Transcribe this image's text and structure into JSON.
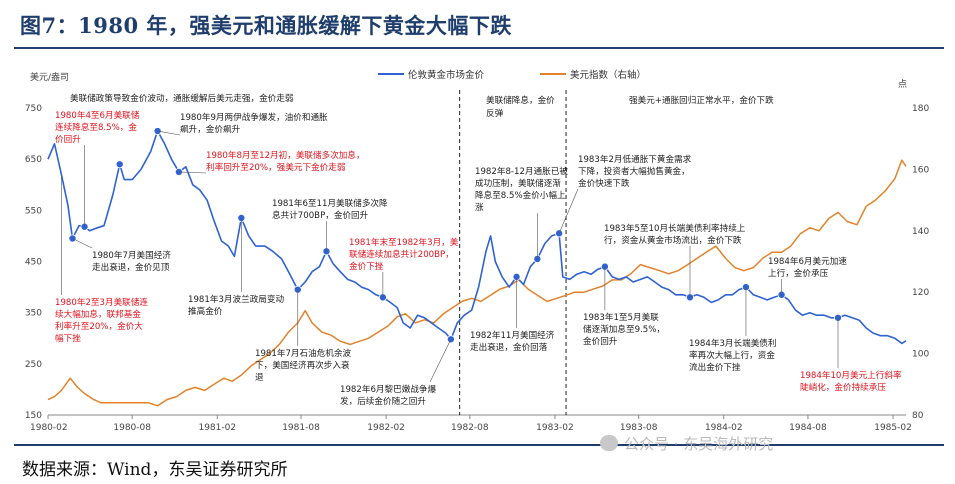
{
  "title": "图7：1980 年，强美元和通胀缓解下黄金大幅下跌",
  "source": "数据来源：Wind，东吴证券研究所",
  "watermark": "公众号 · 东吴海外研究",
  "colors": {
    "gold": "#2f62d4",
    "usd": "#e2832a",
    "title": "#1f3e6e",
    "red": "#e0141e"
  },
  "chart_data": {
    "type": "line",
    "left_unit": "美元/盎司",
    "right_unit": "点",
    "y_left_lim": [
      150,
      750
    ],
    "y_right_lim": [
      80,
      180
    ],
    "y_left_ticks": [
      150,
      250,
      350,
      450,
      550,
      650,
      750
    ],
    "y_right_ticks": [
      80,
      100,
      120,
      140,
      160,
      180
    ],
    "x_range": [
      "1980-02",
      "1985-03"
    ],
    "x_ticks": [
      "1980-02",
      "1980-08",
      "1981-02",
      "1981-08",
      "1982-02",
      "1982-08",
      "1983-02",
      "1983-08",
      "1984-02",
      "1984-08",
      "1985-02"
    ],
    "series": [
      {
        "name": "伦敦黄金市场金价",
        "axis": "left",
        "points": [
          [
            "1980-02",
            650
          ],
          [
            "1980-02-15",
            680
          ],
          [
            "1980-03-01",
            620
          ],
          [
            "1980-03-15",
            560
          ],
          [
            "1980-03-25",
            495
          ],
          [
            "1980-04-08",
            520
          ],
          [
            "1980-04-20",
            518
          ],
          [
            "1980-05-01",
            510
          ],
          [
            "1980-05-15",
            515
          ],
          [
            "1980-06-01",
            520
          ],
          [
            "1980-06-20",
            580
          ],
          [
            "1980-07-05",
            640
          ],
          [
            "1980-07-15",
            610
          ],
          [
            "1980-08-01",
            610
          ],
          [
            "1980-08-20",
            630
          ],
          [
            "1980-09-10",
            665
          ],
          [
            "1980-09-25",
            705
          ],
          [
            "1980-10-10",
            680
          ],
          [
            "1980-10-25",
            650
          ],
          [
            "1980-11-10",
            625
          ],
          [
            "1980-11-25",
            635
          ],
          [
            "1980-12-10",
            600
          ],
          [
            "1980-12-25",
            590
          ],
          [
            "1981-01-10",
            570
          ],
          [
            "1981-01-25",
            530
          ],
          [
            "1981-02-10",
            490
          ],
          [
            "1981-02-25",
            480
          ],
          [
            "1981-03-10",
            460
          ],
          [
            "1981-03-25",
            535
          ],
          [
            "1981-04-10",
            500
          ],
          [
            "1981-04-25",
            480
          ],
          [
            "1981-05-15",
            480
          ],
          [
            "1981-06-01",
            470
          ],
          [
            "1981-06-20",
            455
          ],
          [
            "1981-07-05",
            430
          ],
          [
            "1981-07-25",
            395
          ],
          [
            "1981-08-10",
            410
          ],
          [
            "1981-08-25",
            430
          ],
          [
            "1981-09-10",
            440
          ],
          [
            "1981-09-25",
            470
          ],
          [
            "1981-10-10",
            445
          ],
          [
            "1981-10-25",
            430
          ],
          [
            "1981-11-10",
            415
          ],
          [
            "1981-11-25",
            410
          ],
          [
            "1981-12-10",
            400
          ],
          [
            "1981-12-25",
            395
          ],
          [
            "1982-01-10",
            385
          ],
          [
            "1982-01-25",
            380
          ],
          [
            "1982-02-10",
            370
          ],
          [
            "1982-02-25",
            360
          ],
          [
            "1982-03-10",
            330
          ],
          [
            "1982-03-25",
            320
          ],
          [
            "1982-04-10",
            345
          ],
          [
            "1982-04-25",
            340
          ],
          [
            "1982-05-10",
            330
          ],
          [
            "1982-05-25",
            320
          ],
          [
            "1982-06-10",
            310
          ],
          [
            "1982-06-21",
            298
          ],
          [
            "1982-07-05",
            330
          ],
          [
            "1982-07-20",
            345
          ],
          [
            "1982-08-05",
            355
          ],
          [
            "1982-08-20",
            400
          ],
          [
            "1982-09-05",
            470
          ],
          [
            "1982-09-15",
            500
          ],
          [
            "1982-09-25",
            450
          ],
          [
            "1982-10-10",
            420
          ],
          [
            "1982-10-25",
            400
          ],
          [
            "1982-11-10",
            420
          ],
          [
            "1982-11-25",
            405
          ],
          [
            "1982-12-10",
            440
          ],
          [
            "1982-12-25",
            455
          ],
          [
            "1983-01-10",
            485
          ],
          [
            "1983-01-25",
            500
          ],
          [
            "1983-02-10",
            505
          ],
          [
            "1983-02-18",
            420
          ],
          [
            "1983-03-05",
            415
          ],
          [
            "1983-03-20",
            425
          ],
          [
            "1983-04-05",
            430
          ],
          [
            "1983-04-20",
            425
          ],
          [
            "1983-05-05",
            435
          ],
          [
            "1983-05-20",
            440
          ],
          [
            "1983-06-05",
            420
          ],
          [
            "1983-06-20",
            415
          ],
          [
            "1983-07-05",
            420
          ],
          [
            "1983-07-20",
            410
          ],
          [
            "1983-08-05",
            415
          ],
          [
            "1983-08-20",
            420
          ],
          [
            "1983-09-05",
            410
          ],
          [
            "1983-09-20",
            400
          ],
          [
            "1983-10-05",
            395
          ],
          [
            "1983-10-20",
            385
          ],
          [
            "1983-11-05",
            385
          ],
          [
            "1983-11-20",
            380
          ],
          [
            "1983-12-05",
            385
          ],
          [
            "1983-12-20",
            380
          ],
          [
            "1984-01-05",
            370
          ],
          [
            "1984-01-20",
            375
          ],
          [
            "1984-02-05",
            385
          ],
          [
            "1984-02-20",
            385
          ],
          [
            "1984-03-05",
            395
          ],
          [
            "1984-03-20",
            400
          ],
          [
            "1984-04-05",
            385
          ],
          [
            "1984-04-20",
            380
          ],
          [
            "1984-05-05",
            375
          ],
          [
            "1984-05-20",
            380
          ],
          [
            "1984-06-05",
            385
          ],
          [
            "1984-06-20",
            375
          ],
          [
            "1984-07-05",
            355
          ],
          [
            "1984-07-20",
            345
          ],
          [
            "1984-08-05",
            350
          ],
          [
            "1984-08-20",
            345
          ],
          [
            "1984-09-05",
            345
          ],
          [
            "1984-09-20",
            340
          ],
          [
            "1984-10-05",
            340
          ],
          [
            "1984-10-20",
            345
          ],
          [
            "1984-11-05",
            340
          ],
          [
            "1984-11-20",
            335
          ],
          [
            "1984-12-05",
            320
          ],
          [
            "1984-12-20",
            310
          ],
          [
            "1985-01-05",
            305
          ],
          [
            "1985-01-20",
            305
          ],
          [
            "1985-02-05",
            300
          ],
          [
            "1985-02-20",
            290
          ],
          [
            "1985-03-01",
            295
          ]
        ]
      },
      {
        "name": "美元指数（右轴）",
        "axis": "right",
        "points": [
          [
            "1980-02",
            85
          ],
          [
            "1980-02-15",
            86
          ],
          [
            "1980-03-01",
            88
          ],
          [
            "1980-03-20",
            92
          ],
          [
            "1980-04-05",
            89
          ],
          [
            "1980-04-20",
            87
          ],
          [
            "1980-05-10",
            85
          ],
          [
            "1980-05-25",
            84
          ],
          [
            "1980-06-15",
            84
          ],
          [
            "1980-07-05",
            84
          ],
          [
            "1980-07-25",
            84
          ],
          [
            "1980-08-15",
            84
          ],
          [
            "1980-09-05",
            84
          ],
          [
            "1980-09-25",
            83
          ],
          [
            "1980-10-15",
            85
          ],
          [
            "1980-11-05",
            86
          ],
          [
            "1980-11-25",
            88
          ],
          [
            "1980-12-15",
            89
          ],
          [
            "1981-01-05",
            88
          ],
          [
            "1981-01-25",
            90
          ],
          [
            "1981-02-15",
            92
          ],
          [
            "1981-03-05",
            91
          ],
          [
            "1981-03-25",
            93
          ],
          [
            "1981-04-15",
            96
          ],
          [
            "1981-05-05",
            98
          ],
          [
            "1981-05-25",
            100
          ],
          [
            "1981-06-15",
            103
          ],
          [
            "1981-07-05",
            107
          ],
          [
            "1981-07-25",
            110
          ],
          [
            "1981-08-10",
            114
          ],
          [
            "1981-08-25",
            110
          ],
          [
            "1981-09-15",
            107
          ],
          [
            "1981-10-05",
            106
          ],
          [
            "1981-10-25",
            104
          ],
          [
            "1981-11-15",
            103
          ],
          [
            "1981-12-05",
            104
          ],
          [
            "1981-12-25",
            105
          ],
          [
            "1982-01-15",
            107
          ],
          [
            "1982-02-05",
            109
          ],
          [
            "1982-02-25",
            112
          ],
          [
            "1982-03-15",
            113
          ],
          [
            "1982-04-05",
            110
          ],
          [
            "1982-04-25",
            111
          ],
          [
            "1982-05-15",
            110
          ],
          [
            "1982-06-05",
            113
          ],
          [
            "1982-06-25",
            115
          ],
          [
            "1982-07-15",
            117
          ],
          [
            "1982-08-05",
            118
          ],
          [
            "1982-08-25",
            117
          ],
          [
            "1982-09-15",
            119
          ],
          [
            "1982-10-05",
            121
          ],
          [
            "1982-10-25",
            122
          ],
          [
            "1982-11-15",
            124
          ],
          [
            "1982-12-05",
            121
          ],
          [
            "1982-12-25",
            119
          ],
          [
            "1983-01-15",
            117
          ],
          [
            "1983-02-05",
            118
          ],
          [
            "1983-02-25",
            119
          ],
          [
            "1983-03-15",
            120
          ],
          [
            "1983-04-05",
            120
          ],
          [
            "1983-04-25",
            121
          ],
          [
            "1983-05-15",
            122
          ],
          [
            "1983-06-05",
            124
          ],
          [
            "1983-06-25",
            124
          ],
          [
            "1983-07-15",
            126
          ],
          [
            "1983-08-05",
            129
          ],
          [
            "1983-08-25",
            128
          ],
          [
            "1983-09-15",
            127
          ],
          [
            "1983-10-05",
            126
          ],
          [
            "1983-10-25",
            127
          ],
          [
            "1983-11-15",
            129
          ],
          [
            "1983-12-05",
            131
          ],
          [
            "1983-12-25",
            133
          ],
          [
            "1984-01-15",
            135
          ],
          [
            "1984-02-05",
            131
          ],
          [
            "1984-02-25",
            128
          ],
          [
            "1984-03-15",
            127
          ],
          [
            "1984-04-05",
            128
          ],
          [
            "1984-04-25",
            131
          ],
          [
            "1984-05-15",
            133
          ],
          [
            "1984-06-05",
            133
          ],
          [
            "1984-06-25",
            135
          ],
          [
            "1984-07-15",
            139
          ],
          [
            "1984-08-05",
            141
          ],
          [
            "1984-08-25",
            140
          ],
          [
            "1984-09-15",
            144
          ],
          [
            "1984-10-05",
            146
          ],
          [
            "1984-10-25",
            143
          ],
          [
            "1984-11-15",
            142
          ],
          [
            "1984-12-05",
            148
          ],
          [
            "1984-12-25",
            150
          ],
          [
            "1985-01-15",
            153
          ],
          [
            "1985-02-05",
            157
          ],
          [
            "1985-02-20",
            163
          ],
          [
            "1985-03-01",
            161
          ]
        ]
      }
    ],
    "period_labels": [
      "美联储政策导致金价波动，通胀缓解后美元走强，金价走弱",
      "美联储降息，金价反弹",
      "强美元+通胀回归正常水平，金价下跌"
    ],
    "annotations": [
      {
        "date": "1980-04-20",
        "value": 518,
        "marker": true,
        "red": true,
        "lines": [
          "1980年4至6月美联储",
          "连续降息至8.5%，金",
          "价回升"
        ]
      },
      {
        "date": "1980-03-25",
        "value": 495,
        "marker": true,
        "red": false,
        "lines": [
          "1980年7月美国经济",
          "走出衰退，金价见顶"
        ]
      },
      {
        "date": "1980-07-05",
        "value": 640,
        "marker": true,
        "red": false,
        "lines": []
      },
      {
        "date": "1980-09-25",
        "value": 705,
        "marker": true,
        "red": false,
        "lines": [
          "1980年9月两伊战争爆发，油价和通胀",
          "飙升，金价飙升"
        ]
      },
      {
        "date": "1980-11-10",
        "value": 625,
        "marker": true,
        "red": true,
        "lines": [
          "1980年8月至12月初，美联储多次加息，",
          "利率回升至20%，强美元下金价走弱"
        ]
      },
      {
        "date": "1980-03-01",
        "value": 620,
        "marker": false,
        "red": true,
        "lines": [
          "1980年2至3月美联储连",
          "续大幅加息，联邦基金",
          "利率升至20%，金价大",
          "幅下挫"
        ]
      },
      {
        "date": "1981-03-25",
        "value": 535,
        "marker": true,
        "red": false,
        "lines": [
          "1981年3月波兰政局变动",
          "推高金价"
        ]
      },
      {
        "date": "1981-07-25",
        "value": 395,
        "marker": true,
        "red": false,
        "lines": [
          "1981年7月石油危机余波",
          "下，美国经济再次步入衰",
          "退"
        ]
      },
      {
        "date": "1981-09-25",
        "value": 470,
        "marker": true,
        "red": false,
        "lines": [
          "1981年6至11月美联储多次降",
          "息共计700BP，金价回升"
        ]
      },
      {
        "date": "1982-01-25",
        "value": 380,
        "marker": true,
        "red": true,
        "lines": [
          "1981年末至1982年3月，美",
          "联储连续加息共计200BP，",
          "金价下挫"
        ]
      },
      {
        "date": "1982-06-21",
        "value": 298,
        "marker": true,
        "red": false,
        "lines": [
          "1982年6月黎巴嫩战争爆",
          "发，后续金价随之回升"
        ]
      },
      {
        "date": "1982-11-10",
        "value": 420,
        "marker": true,
        "red": false,
        "lines": [
          "1982年11月美国经济",
          "走出衰退，金价回落"
        ]
      },
      {
        "date": "1982-12-25",
        "value": 455,
        "marker": true,
        "red": false,
        "lines": [
          "1982年8-12月通胀已被",
          "成功压制，美联储逐渐",
          "降息至8.5%金价小幅上",
          "涨"
        ]
      },
      {
        "date": "1983-02-10",
        "value": 505,
        "marker": true,
        "red": false,
        "lines": [
          "1983年2月低通胀下黄金需求",
          "下降，投资者大幅抛售黄金，",
          "金价快速下跌"
        ]
      },
      {
        "date": "1983-05-20",
        "value": 440,
        "marker": true,
        "red": false,
        "lines": [
          "1983年1至5月美联",
          "储逐渐加息至9.5%，",
          "金价回升"
        ]
      },
      {
        "date": "1983-11-20",
        "value": 380,
        "marker": true,
        "red": false,
        "lines": [
          "1983年5至10月长端美债利率持续上",
          "行，资金从黄金市场流出，金价下跌"
        ]
      },
      {
        "date": "1984-03-20",
        "value": 400,
        "marker": true,
        "red": false,
        "lines": [
          "1984年3月长端美债利",
          "率再次大幅上行，资金",
          "流出金价下挫"
        ]
      },
      {
        "date": "1984-06-05",
        "value": 385,
        "marker": true,
        "red": false,
        "lines": [
          "1984年6月美元加速",
          "上行，金价承压"
        ]
      },
      {
        "date": "1984-10-05",
        "value": 340,
        "marker": true,
        "red": true,
        "lines": [
          "1984年10月美元上行斜率",
          "陡峭化，金价持续承压"
        ]
      }
    ]
  }
}
